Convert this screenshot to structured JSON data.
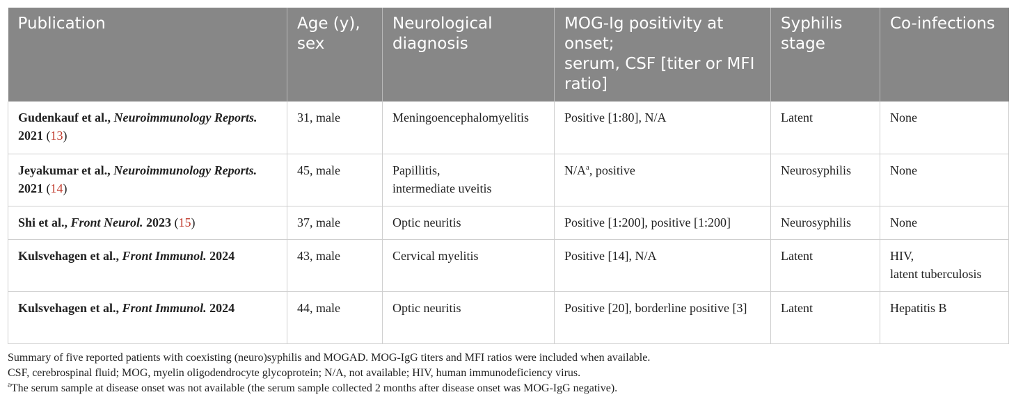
{
  "columns": [
    "Publication",
    "Age (y), sex",
    "Neurological diagnosis",
    "MOG-Ig positivity at onset; serum, CSF [titer or MFI ratio]",
    "Syphilis stage",
    "Co-infections"
  ],
  "header_lines": {
    "c3_line1": "MOG-Ig positivity at onset;",
    "c3_line2": "serum, CSF [titer or MFI ratio]"
  },
  "rows": [
    {
      "author": "Gudenkauf et al., ",
      "journal": "Neuroimmunology Reports.",
      "year": " 2021",
      "ref_open": " (",
      "ref": "13",
      "ref_close": ")",
      "age_sex": "31, male",
      "diagnosis": [
        "Meningoencephalomyelitis"
      ],
      "mog": "Positive [1:80], N/A",
      "stage": "Latent",
      "coinfections": [
        "None"
      ]
    },
    {
      "author": "Jeyakumar et al., ",
      "journal": "Neuroimmunology Reports.",
      "year": " 2021",
      "ref_open": " (",
      "ref": "14",
      "ref_close": ")",
      "age_sex": "45, male",
      "diagnosis": [
        "Papillitis,",
        "intermediate uveitis"
      ],
      "mog_pre": "N/A",
      "mog_sup": "a",
      "mog_post": ", positive",
      "stage": "Neurosyphilis",
      "coinfections": [
        "None"
      ]
    },
    {
      "author": "Shi et al., ",
      "journal": "Front Neurol.",
      "year": " 2023",
      "ref_open": " (",
      "ref": "15",
      "ref_close": ")",
      "age_sex": "37, male",
      "diagnosis": [
        "Optic neuritis"
      ],
      "mog": "Positive [1:200], positive [1:200]",
      "stage": "Neurosyphilis",
      "coinfections": [
        "None"
      ]
    },
    {
      "author": "Kulsvehagen et al., ",
      "journal": "Front Immunol.",
      "year": " 2024",
      "age_sex": "43, male",
      "diagnosis": [
        "Cervical myelitis"
      ],
      "mog": "Positive [14], N/A",
      "stage": "Latent",
      "coinfections": [
        "HIV,",
        "latent tuberculosis"
      ]
    },
    {
      "author": "Kulsvehagen et al., ",
      "journal": "Front Immunol.",
      "year": " 2024",
      "age_sex": "44, male",
      "diagnosis": [
        "Optic neuritis"
      ],
      "mog": "Positive [20], borderline positive [3]",
      "stage": "Latent",
      "coinfections": [
        "Hepatitis B"
      ]
    }
  ],
  "footnotes": {
    "summary": "Summary of five reported patients with coexisting (neuro)syphilis and MOGAD. MOG-IgG titers and MFI ratios were included when available.",
    "abbreviations": "CSF, cerebrospinal fluid; MOG, myelin oligodendrocyte glycoprotein; N/A, not available; HIV, human immunodeficiency virus.",
    "note_marker": "a",
    "note_text": "The serum sample at disease onset was not available (the serum sample collected 2 months after disease onset was MOG-IgG negative)."
  }
}
